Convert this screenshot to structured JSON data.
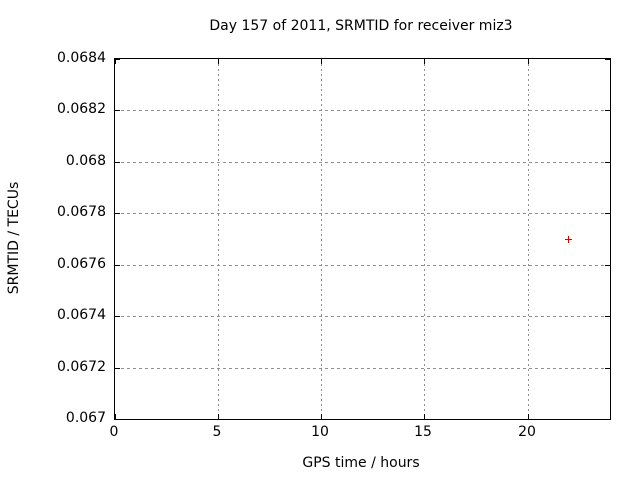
{
  "chart_data": {
    "type": "scatter",
    "title": "Day 157 of 2011, SRMTID for receiver miz3",
    "xlabel": "GPS time / hours",
    "ylabel": "SRMTID / TECUs",
    "xlim": [
      0,
      24
    ],
    "ylim": [
      0.067,
      0.0684
    ],
    "xticks": [
      0,
      5,
      10,
      15,
      20
    ],
    "xtick_labels": [
      "0",
      "5",
      "10",
      "15",
      "20"
    ],
    "yticks": [
      0.067,
      0.0672,
      0.0674,
      0.0676,
      0.0678,
      0.068,
      0.0682,
      0.0684
    ],
    "ytick_labels": [
      "0.067",
      "0.0672",
      "0.0674",
      "0.0676",
      "0.0678",
      "0.068",
      "0.0682",
      "0.0684"
    ],
    "grid": true,
    "legend": "none",
    "series": [
      {
        "name": "SRMTID",
        "marker": "plus",
        "color": "#dd0000",
        "points": [
          {
            "x": 22,
            "y": 0.0677
          }
        ]
      }
    ]
  },
  "colors": {
    "background": "#ffffff",
    "plot_border": "#000000",
    "grid": "#909090",
    "text": "#000000",
    "marker": "#dd0000"
  }
}
